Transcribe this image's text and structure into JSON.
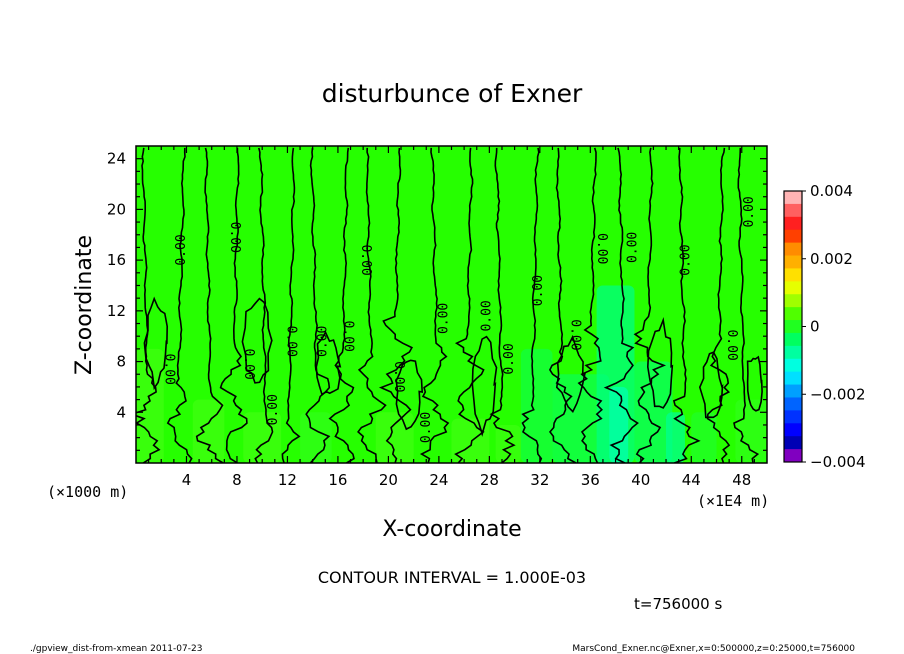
{
  "chart_data": {
    "type": "heatmap",
    "title": "disturbunce of Exner",
    "xlabel": "X-coordinate",
    "ylabel": "Z-coordinate",
    "x_unit_left": "(×1000 m)",
    "x_unit_right": "(×1E4 m)",
    "xlim": [
      0,
      50
    ],
    "ylim": [
      0,
      25
    ],
    "x_ticks": [
      "4",
      "8",
      "12",
      "16",
      "20",
      "24",
      "28",
      "32",
      "36",
      "40",
      "44",
      "48"
    ],
    "y_ticks": [
      "4",
      "8",
      "12",
      "16",
      "20",
      "24"
    ],
    "colorbar": {
      "range": [
        -0.004,
        0.004
      ],
      "tick_labels": [
        "0.004",
        "0.002",
        "0",
        "−0.002",
        "−0.004"
      ],
      "colors": [
        "#ffb4b4",
        "#ff6060",
        "#ff2020",
        "#ff4000",
        "#ff8c00",
        "#ffb000",
        "#ffe000",
        "#e6ff00",
        "#a0ff00",
        "#50ff00",
        "#20ff20",
        "#00ff60",
        "#00ffa0",
        "#00ffe0",
        "#00e0ff",
        "#00a0ff",
        "#0064ff",
        "#0032ff",
        "#0000ff",
        "#0000b4",
        "#8000c0"
      ]
    },
    "contour_interval": "CONTOUR INTERVAL = 1.000E-03",
    "contour_labels": [
      {
        "text": "0.00",
        "x": 2.6,
        "z": 7.4,
        "rot": 90
      },
      {
        "text": "0.00",
        "x": 3.6,
        "z": 16.8,
        "rot": -90
      },
      {
        "text": "0.00",
        "x": 7.8,
        "z": 17.8,
        "rot": 90
      },
      {
        "text": "0.00",
        "x": 8.9,
        "z": 7.8,
        "rot": 90
      },
      {
        "text": "0.00",
        "x": 10.9,
        "z": 4.2,
        "rot": -90
      },
      {
        "text": "0.00",
        "x": 12.3,
        "z": 9.6,
        "rot": 90
      },
      {
        "text": "0.00",
        "x": 14.8,
        "z": 9.6,
        "rot": -90
      },
      {
        "text": "0.00",
        "x": 16.8,
        "z": 10.0,
        "rot": 90
      },
      {
        "text": "0.00",
        "x": 18.2,
        "z": 16.0,
        "rot": 90
      },
      {
        "text": "0.00",
        "x": 20.8,
        "z": 6.8,
        "rot": 90
      },
      {
        "text": "0.00",
        "x": 23.0,
        "z": 2.8,
        "rot": -90
      },
      {
        "text": "0.00",
        "x": 24.4,
        "z": 11.4,
        "rot": -90
      },
      {
        "text": "0.00",
        "x": 27.8,
        "z": 11.6,
        "rot": -90
      },
      {
        "text": "0.00",
        "x": 29.6,
        "z": 8.2,
        "rot": -90
      },
      {
        "text": "0.00",
        "x": 31.9,
        "z": 13.6,
        "rot": -90
      },
      {
        "text": "0.00",
        "x": 34.8,
        "z": 10.1,
        "rot": 90
      },
      {
        "text": "0.00",
        "x": 36.9,
        "z": 16.9,
        "rot": 90
      },
      {
        "text": "0.00",
        "x": 39.4,
        "z": 17.0,
        "rot": -90
      },
      {
        "text": "0.00",
        "x": 43.6,
        "z": 16.0,
        "rot": -90
      },
      {
        "text": "0.00",
        "x": 47.2,
        "z": 9.3,
        "rot": 90
      },
      {
        "text": "0.00",
        "x": 48.6,
        "z": 19.8,
        "rot": -90
      }
    ]
  },
  "time_label": "t=756000 s",
  "footer_left": "./gpview_dist-from-xmean  2011-07-23",
  "footer_right": "MarsCond_Exner.nc@Exner,x=0:500000,z=0:25000,t=756000"
}
